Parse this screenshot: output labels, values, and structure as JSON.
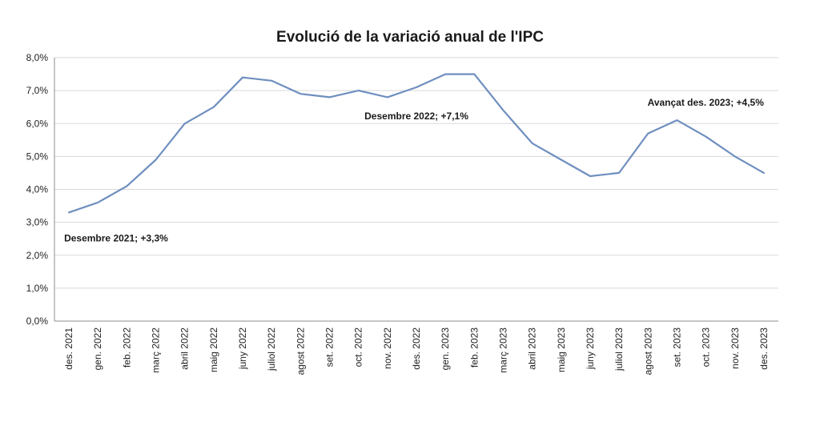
{
  "chart_data": {
    "type": "line",
    "title": "Evolució de la variació anual de l'IPC",
    "xlabel": "",
    "ylabel": "",
    "categories": [
      "des. 2021",
      "gen. 2022",
      "feb. 2022",
      "març 2022",
      "abril 2022",
      "maig 2022",
      "juny 2022",
      "juliol 2022",
      "agost 2022",
      "set. 2022",
      "oct. 2022",
      "nov. 2022",
      "des. 2022",
      "gen. 2023",
      "feb. 2023",
      "març 2023",
      "abril 2023",
      "maig 2023",
      "juny 2023",
      "juliol 2023",
      "agost 2023",
      "set. 2023",
      "oct. 2023",
      "nov. 2023",
      "des. 2023"
    ],
    "series": [
      {
        "values": [
          3.3,
          3.6,
          4.1,
          4.9,
          6.0,
          6.5,
          7.4,
          7.3,
          6.9,
          6.8,
          7.0,
          6.8,
          7.1,
          7.5,
          7.5,
          6.4,
          5.4,
          4.9,
          4.4,
          4.5,
          5.7,
          6.1,
          5.6,
          5.0,
          4.5
        ],
        "color": "#6f8fbf"
      }
    ],
    "ylim": [
      0,
      8
    ],
    "ytick_labels": [
      "0,0%",
      "1,0%",
      "2,0%",
      "3,0%",
      "4,0%",
      "5,0%",
      "6,0%",
      "7,0%",
      "8,0%"
    ],
    "grid": true,
    "annotations": [
      {
        "index": 0,
        "text": "Desembre 2021; +3,3%"
      },
      {
        "index": 12,
        "text": "Desembre 2022;  +7,1%"
      },
      {
        "index": 24,
        "text": "Avançat des. 2023; +4,5%"
      }
    ]
  }
}
